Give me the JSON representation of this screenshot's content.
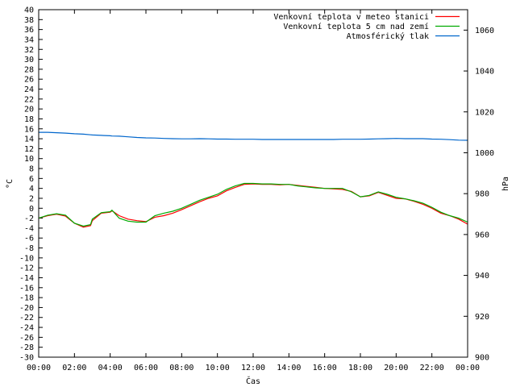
{
  "chart_data": {
    "type": "line",
    "xlabel": "Čas",
    "ylabel": "°C",
    "y2label": "hPa",
    "x_ticks": [
      "00:00",
      "02:00",
      "04:00",
      "06:00",
      "08:00",
      "10:00",
      "12:00",
      "14:00",
      "16:00",
      "18:00",
      "20:00",
      "22:00",
      "00:00"
    ],
    "xlim": [
      0,
      24
    ],
    "ylim": [
      -30,
      40
    ],
    "y_step": 2,
    "y2lim": [
      900,
      1070
    ],
    "y2_ticks": [
      900,
      920,
      940,
      960,
      980,
      1000,
      1020,
      1040,
      1060
    ],
    "grid": false,
    "legend_position": "top-right",
    "x_hours": [
      0,
      0.5,
      1,
      1.5,
      2,
      2.5,
      2.9,
      3,
      3.5,
      4,
      4.1,
      4.5,
      5,
      5.5,
      6,
      6.5,
      7,
      7.5,
      8,
      8.5,
      9,
      9.5,
      10,
      10.5,
      11,
      11.5,
      12,
      12.5,
      13,
      13.5,
      14,
      14.5,
      15,
      15.5,
      16,
      16.5,
      17,
      17.5,
      18,
      18.5,
      19,
      19.5,
      20,
      20.5,
      21,
      21.5,
      22,
      22.5,
      23,
      23.5,
      24
    ],
    "series": [
      {
        "name": "Venkovní teplota v meteo stanici",
        "color": "#ff0000",
        "axis": "left",
        "values": [
          -2,
          -1.5,
          -1.2,
          -1.6,
          -3,
          -3.8,
          -3.5,
          -2.5,
          -1,
          -0.8,
          -0.5,
          -1.5,
          -2.2,
          -2.5,
          -2.7,
          -1.8,
          -1.5,
          -1,
          -0.3,
          0.5,
          1.3,
          2,
          2.5,
          3.5,
          4.2,
          4.8,
          4.9,
          4.8,
          4.8,
          4.7,
          4.8,
          4.6,
          4.4,
          4.2,
          4,
          3.9,
          3.8,
          3.4,
          2.3,
          2.5,
          3.2,
          2.6,
          2,
          1.9,
          1.4,
          0.8,
          0,
          -1,
          -1.5,
          -2.2,
          -3.2
        ]
      },
      {
        "name": "Venkovní teplota 5 cm nad zemí",
        "color": "#00aa00",
        "axis": "left",
        "values": [
          -2,
          -1.4,
          -1.1,
          -1.4,
          -3,
          -3.6,
          -3.3,
          -2.2,
          -0.9,
          -0.7,
          -0.4,
          -2,
          -2.6,
          -2.8,
          -2.8,
          -1.5,
          -1,
          -0.6,
          0,
          0.8,
          1.6,
          2.2,
          2.8,
          3.8,
          4.5,
          5,
          5,
          4.9,
          4.9,
          4.8,
          4.8,
          4.5,
          4.3,
          4.1,
          4,
          4,
          4,
          3.3,
          2.3,
          2.6,
          3.3,
          2.8,
          2.2,
          1.9,
          1.5,
          1,
          0.2,
          -0.8,
          -1.5,
          -2,
          -2.8
        ]
      },
      {
        "name": "Atmosférický tlak",
        "color": "#0066cc",
        "axis": "right",
        "values": [
          1010,
          1010,
          1009.8,
          1009.6,
          1009.3,
          1009.1,
          1008.8,
          1008.7,
          1008.5,
          1008.3,
          1008.2,
          1008.1,
          1007.8,
          1007.5,
          1007.3,
          1007.2,
          1007,
          1006.9,
          1006.8,
          1006.8,
          1006.9,
          1006.8,
          1006.7,
          1006.7,
          1006.6,
          1006.6,
          1006.6,
          1006.5,
          1006.5,
          1006.5,
          1006.5,
          1006.5,
          1006.5,
          1006.5,
          1006.5,
          1006.5,
          1006.6,
          1006.6,
          1006.6,
          1006.7,
          1006.8,
          1006.9,
          1007,
          1006.9,
          1006.9,
          1006.9,
          1006.7,
          1006.6,
          1006.4,
          1006.2,
          1006.1
        ]
      }
    ]
  }
}
